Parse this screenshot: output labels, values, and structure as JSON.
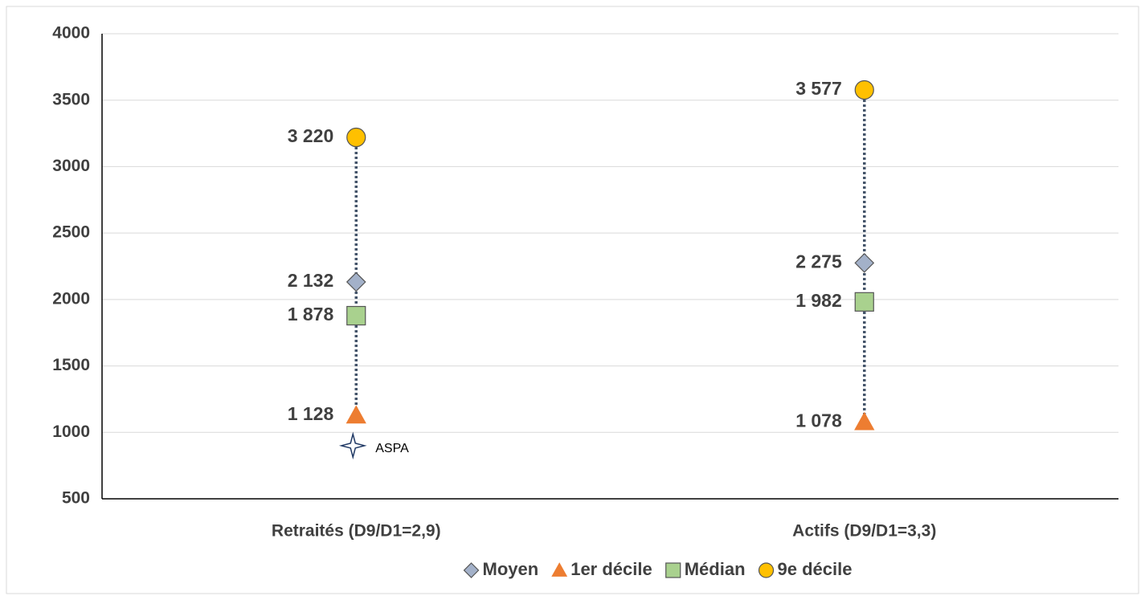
{
  "chart_data": {
    "type": "scatter",
    "categories": [
      "Retraités (D9/D1=2,9)",
      "Actifs (D9/D1=3,3)"
    ],
    "series": [
      {
        "name": "Moyen",
        "marker": "diamond",
        "color": "#a3b1c9",
        "values": [
          2132,
          2275
        ],
        "value_labels": [
          "2 132",
          "2 275"
        ]
      },
      {
        "name": "1er décile",
        "marker": "triangle",
        "color": "#ed7d31",
        "values": [
          1128,
          1078
        ],
        "value_labels": [
          "1 128",
          "1 078"
        ]
      },
      {
        "name": "Médian",
        "marker": "square",
        "color": "#a9d18e",
        "values": [
          1878,
          1982
        ],
        "value_labels": [
          "1 878",
          "1 982"
        ]
      },
      {
        "name": "9e décile",
        "marker": "circle",
        "color": "#ffc000",
        "values": [
          3220,
          3577
        ],
        "value_labels": [
          "3 220",
          "3 577"
        ]
      }
    ],
    "reference": {
      "label": "ASPA",
      "marker": "star",
      "color": "#1f3864",
      "values": [
        900,
        null
      ]
    },
    "ylim": [
      500,
      4000
    ],
    "yticks": [
      500,
      1000,
      1500,
      2000,
      2500,
      3000,
      3500,
      4000
    ],
    "grid": true,
    "legend": "bottom"
  }
}
